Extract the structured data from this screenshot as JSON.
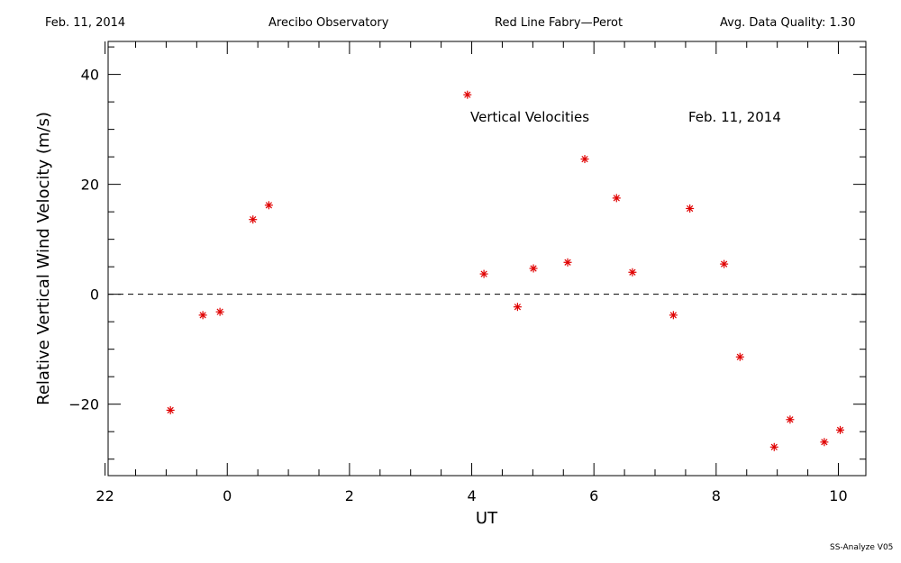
{
  "header": {
    "date": "Feb. 11, 2014",
    "site": "Arecibo Observatory",
    "instrument": "Red Line Fabry—Perot",
    "quality": "Avg. Data Quality: 1.30"
  },
  "footer": "SS-Analyze V05",
  "chart_data": {
    "type": "scatter",
    "title": "",
    "xlabel": "UT",
    "ylabel": "Relative Vertical Wind Velocity (m/s)",
    "xlim": [
      -1.95,
      10.45
    ],
    "ylim": [
      -33,
      46
    ],
    "x_major_ticks": [
      22,
      0,
      2,
      4,
      6,
      8,
      10
    ],
    "x_tick_labels": [
      "22",
      "0",
      "2",
      "4",
      "6",
      "8",
      "10"
    ],
    "y_major_ticks": [
      -20,
      0,
      20,
      40
    ],
    "y_tick_labels": [
      "−20",
      "0",
      "20",
      "40"
    ],
    "annotations": [
      "Vertical Velocities",
      "Feb. 11, 2014"
    ],
    "reference_line": {
      "y": 0,
      "style": "dashed"
    },
    "marker": "asterisk",
    "marker_color": "#e00000",
    "series": [
      {
        "x": [
          -0.93,
          -0.4,
          -0.12,
          0.42,
          0.68,
          3.93,
          4.2,
          4.75,
          5.01,
          5.57,
          5.85,
          6.37,
          6.63,
          7.3,
          7.57,
          8.13,
          8.39,
          8.95,
          9.21,
          9.77,
          10.03
        ],
        "y": [
          -21.1,
          -3.8,
          -3.2,
          13.6,
          16.2,
          36.3,
          3.7,
          -2.3,
          4.7,
          5.8,
          24.6,
          17.5,
          4.0,
          -3.8,
          15.6,
          5.5,
          -11.4,
          -27.8,
          -22.8,
          -26.9,
          -24.7
        ]
      }
    ]
  }
}
